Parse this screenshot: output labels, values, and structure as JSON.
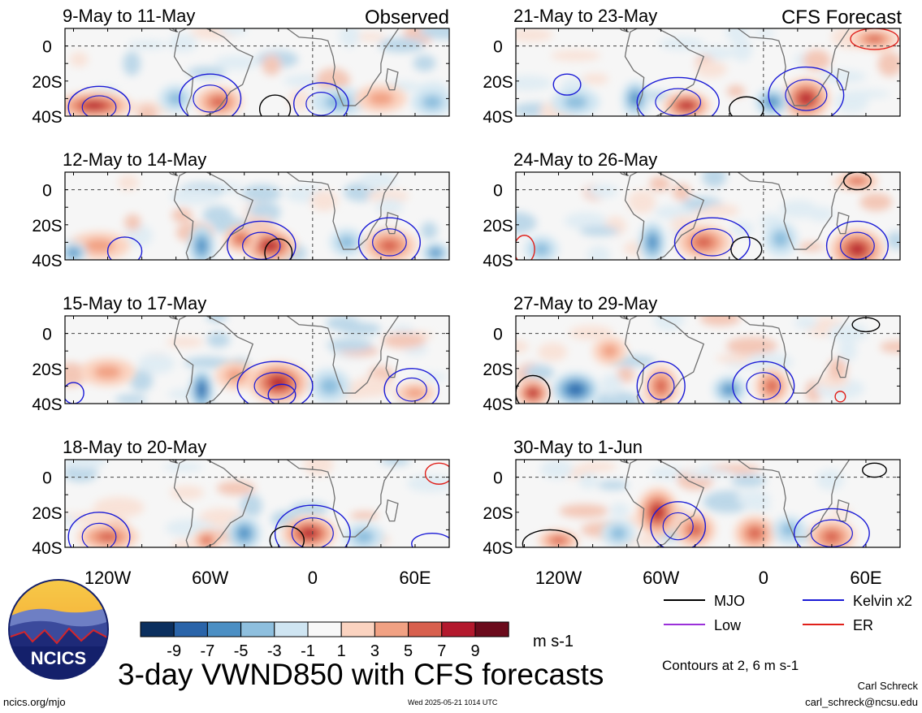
{
  "column_labels": {
    "left": "Observed",
    "right": "CFS Forecast"
  },
  "panels": [
    {
      "title": "9-May to 11-May",
      "column": "left"
    },
    {
      "title": "12-May to 14-May",
      "column": "left"
    },
    {
      "title": "15-May to 17-May",
      "column": "left"
    },
    {
      "title": "18-May to 20-May",
      "column": "left"
    },
    {
      "title": "21-May to 23-May",
      "column": "right"
    },
    {
      "title": "24-May to 26-May",
      "column": "right"
    },
    {
      "title": "27-May to 29-May",
      "column": "right"
    },
    {
      "title": "30-May to 1-Jun",
      "column": "right"
    }
  ],
  "chart_data": {
    "type": "heatmap",
    "title": "3-day VWND850 with CFS forecasts",
    "x_ticks": [
      "120W",
      "60W",
      "0",
      "60E"
    ],
    "x_tick_values": [
      -120,
      -60,
      0,
      60
    ],
    "y_ticks": [
      "0",
      "20S",
      "40S"
    ],
    "y_tick_values": [
      0,
      -20,
      -40
    ],
    "xlim": [
      -145,
      80
    ],
    "ylim": [
      -40,
      10
    ],
    "colorbar": {
      "unit": "m s-1",
      "tick_labels": [
        "-9",
        "-7",
        "-5",
        "-3",
        "-1",
        "1",
        "3",
        "5",
        "7",
        "9"
      ],
      "colors": [
        "#0b2f5e",
        "#2a64a9",
        "#4b8fc4",
        "#8ebfde",
        "#cfe5f2",
        "#f8f8f8",
        "#fbd3c0",
        "#f1a183",
        "#d8604e",
        "#b3192d",
        "#6b0b1c"
      ]
    },
    "legend": [
      {
        "label": "MJO",
        "color": "#000000"
      },
      {
        "label": "Kelvin x2",
        "color": "#1a1ad6"
      },
      {
        "label": "Low",
        "color": "#9b30d9"
      },
      {
        "label": "ER",
        "color": "#e0201a"
      }
    ],
    "contour_note": "Contours at 2, 6 m s-1",
    "features": [
      {
        "panel": 0,
        "kind": "anom",
        "lon": -128,
        "lat": -34,
        "rx": 22,
        "ry": 8,
        "v": 8
      },
      {
        "panel": 0,
        "kind": "anom",
        "lon": -55,
        "lat": -32,
        "rx": 14,
        "ry": 9,
        "v": 5
      },
      {
        "panel": 0,
        "kind": "anom",
        "lon": -80,
        "lat": -30,
        "rx": 10,
        "ry": 8,
        "v": -4
      },
      {
        "panel": 0,
        "kind": "anom",
        "lon": 15,
        "lat": -32,
        "rx": 16,
        "ry": 8,
        "v": -4
      },
      {
        "panel": 0,
        "kind": "anom",
        "lon": 40,
        "lat": -30,
        "rx": 15,
        "ry": 8,
        "v": 3
      },
      {
        "panel": 0,
        "kind": "anom",
        "lon": 70,
        "lat": -32,
        "rx": 12,
        "ry": 8,
        "v": -3
      },
      {
        "panel": 0,
        "kind": "contour",
        "lon": -125,
        "lat": -35,
        "rx": 18,
        "ry": 12,
        "color": "#1a1ad6"
      },
      {
        "panel": 0,
        "kind": "contour",
        "lon": -60,
        "lat": -30,
        "rx": 18,
        "ry": 14,
        "color": "#1a1ad6"
      },
      {
        "panel": 0,
        "kind": "contour",
        "lon": -22,
        "lat": -36,
        "rx": 9,
        "ry": 8,
        "color": "#000000"
      },
      {
        "panel": 0,
        "kind": "contour",
        "lon": 5,
        "lat": -33,
        "rx": 16,
        "ry": 12,
        "color": "#1a1ad6"
      },
      {
        "panel": 1,
        "kind": "anom",
        "lon": -25,
        "lat": -32,
        "rx": 16,
        "ry": 10,
        "v": 8
      },
      {
        "panel": 1,
        "kind": "anom",
        "lon": -42,
        "lat": -28,
        "rx": 10,
        "ry": 8,
        "v": 5
      },
      {
        "panel": 1,
        "kind": "anom",
        "lon": -65,
        "lat": -32,
        "rx": 8,
        "ry": 12,
        "v": -6
      },
      {
        "panel": 1,
        "kind": "anom",
        "lon": 45,
        "lat": -32,
        "rx": 16,
        "ry": 10,
        "v": 5
      },
      {
        "panel": 1,
        "kind": "anom",
        "lon": 20,
        "lat": -30,
        "rx": 10,
        "ry": 8,
        "v": -3
      },
      {
        "panel": 1,
        "kind": "anom",
        "lon": -125,
        "lat": -32,
        "rx": 18,
        "ry": 8,
        "v": 3
      },
      {
        "panel": 1,
        "kind": "anom",
        "lon": -140,
        "lat": -36,
        "rx": 8,
        "ry": 6,
        "v": -5
      },
      {
        "panel": 1,
        "kind": "anom",
        "lon": 72,
        "lat": -36,
        "rx": 8,
        "ry": 6,
        "v": -5
      },
      {
        "panel": 1,
        "kind": "contour",
        "lon": -30,
        "lat": -32,
        "rx": 20,
        "ry": 14,
        "color": "#1a1ad6"
      },
      {
        "panel": 1,
        "kind": "contour",
        "lon": -20,
        "lat": -36,
        "rx": 8,
        "ry": 8,
        "color": "#000000"
      },
      {
        "panel": 1,
        "kind": "contour",
        "lon": 45,
        "lat": -30,
        "rx": 18,
        "ry": 14,
        "color": "#1a1ad6"
      },
      {
        "panel": 1,
        "kind": "contour",
        "lon": -110,
        "lat": -35,
        "rx": 10,
        "ry": 8,
        "color": "#1a1ad6"
      },
      {
        "panel": 2,
        "kind": "anom",
        "lon": -20,
        "lat": -28,
        "rx": 18,
        "ry": 12,
        "v": 8
      },
      {
        "panel": 2,
        "kind": "anom",
        "lon": -65,
        "lat": -32,
        "rx": 7,
        "ry": 12,
        "v": -7
      },
      {
        "panel": 2,
        "kind": "anom",
        "lon": -45,
        "lat": -24,
        "rx": 12,
        "ry": 8,
        "v": 4
      },
      {
        "panel": 2,
        "kind": "anom",
        "lon": 10,
        "lat": -30,
        "rx": 12,
        "ry": 10,
        "v": -4
      },
      {
        "panel": 2,
        "kind": "anom",
        "lon": 60,
        "lat": -34,
        "rx": 12,
        "ry": 6,
        "v": 4
      },
      {
        "panel": 2,
        "kind": "anom",
        "lon": -120,
        "lat": -22,
        "rx": 16,
        "ry": 8,
        "v": 3
      },
      {
        "panel": 2,
        "kind": "contour",
        "lon": -22,
        "lat": -30,
        "rx": 22,
        "ry": 14,
        "color": "#1a1ad6"
      },
      {
        "panel": 2,
        "kind": "contour",
        "lon": -18,
        "lat": -35,
        "rx": 8,
        "ry": 6,
        "color": "#1a1ad6"
      },
      {
        "panel": 2,
        "kind": "contour",
        "lon": 58,
        "lat": -32,
        "rx": 16,
        "ry": 12,
        "color": "#1a1ad6"
      },
      {
        "panel": 2,
        "kind": "contour",
        "lon": -140,
        "lat": -34,
        "rx": 6,
        "ry": 6,
        "color": "#1a1ad6"
      },
      {
        "panel": 3,
        "kind": "anom",
        "lon": -2,
        "lat": -32,
        "rx": 16,
        "ry": 10,
        "v": 8
      },
      {
        "panel": 3,
        "kind": "anom",
        "lon": -40,
        "lat": -32,
        "rx": 10,
        "ry": 10,
        "v": -6
      },
      {
        "panel": 3,
        "kind": "anom",
        "lon": -120,
        "lat": -34,
        "rx": 18,
        "ry": 8,
        "v": 6
      },
      {
        "panel": 3,
        "kind": "anom",
        "lon": -62,
        "lat": -36,
        "rx": 8,
        "ry": 6,
        "v": 5
      },
      {
        "panel": 3,
        "kind": "anom",
        "lon": 30,
        "lat": -34,
        "rx": 12,
        "ry": 8,
        "v": -3
      },
      {
        "panel": 3,
        "kind": "contour",
        "lon": 0,
        "lat": -32,
        "rx": 22,
        "ry": 16,
        "color": "#1a1ad6"
      },
      {
        "panel": 3,
        "kind": "contour",
        "lon": -15,
        "lat": -36,
        "rx": 10,
        "ry": 8,
        "color": "#000000"
      },
      {
        "panel": 3,
        "kind": "contour",
        "lon": -125,
        "lat": -34,
        "rx": 18,
        "ry": 14,
        "color": "#1a1ad6"
      },
      {
        "panel": 3,
        "kind": "contour",
        "lon": 70,
        "lat": -38,
        "rx": 12,
        "ry": 6,
        "color": "#1a1ad6"
      },
      {
        "panel": 3,
        "kind": "contour",
        "lon": 74,
        "lat": 2,
        "rx": 8,
        "ry": 6,
        "color": "#e0201a"
      },
      {
        "panel": 4,
        "kind": "anom",
        "lon": -45,
        "lat": -34,
        "rx": 14,
        "ry": 8,
        "v": 7
      },
      {
        "panel": 4,
        "kind": "anom",
        "lon": 25,
        "lat": -30,
        "rx": 14,
        "ry": 12,
        "v": 7
      },
      {
        "panel": 4,
        "kind": "anom",
        "lon": 65,
        "lat": 4,
        "rx": 14,
        "ry": 6,
        "v": 6
      },
      {
        "panel": 4,
        "kind": "anom",
        "lon": -75,
        "lat": -30,
        "rx": 8,
        "ry": 10,
        "v": -5
      },
      {
        "panel": 4,
        "kind": "anom",
        "lon": 5,
        "lat": -32,
        "rx": 10,
        "ry": 8,
        "v": -5
      },
      {
        "panel": 4,
        "kind": "anom",
        "lon": -110,
        "lat": -32,
        "rx": 14,
        "ry": 8,
        "v": -3
      },
      {
        "panel": 4,
        "kind": "contour",
        "lon": -50,
        "lat": -32,
        "rx": 24,
        "ry": 14,
        "color": "#1a1ad6"
      },
      {
        "panel": 4,
        "kind": "contour",
        "lon": -10,
        "lat": -36,
        "rx": 10,
        "ry": 7,
        "color": "#000000"
      },
      {
        "panel": 4,
        "kind": "contour",
        "lon": 25,
        "lat": -28,
        "rx": 22,
        "ry": 16,
        "color": "#1a1ad6"
      },
      {
        "panel": 4,
        "kind": "contour",
        "lon": -115,
        "lat": -22,
        "rx": 8,
        "ry": 6,
        "color": "#1a1ad6"
      },
      {
        "panel": 4,
        "kind": "contour",
        "lon": 65,
        "lat": 4,
        "rx": 14,
        "ry": 6,
        "color": "#e0201a"
      },
      {
        "panel": 5,
        "kind": "anom",
        "lon": 55,
        "lat": -34,
        "rx": 16,
        "ry": 12,
        "v": 8
      },
      {
        "panel": 5,
        "kind": "anom",
        "lon": -35,
        "lat": -30,
        "rx": 16,
        "ry": 10,
        "v": 6
      },
      {
        "panel": 5,
        "kind": "anom",
        "lon": 55,
        "lat": 5,
        "rx": 12,
        "ry": 5,
        "v": 6
      },
      {
        "panel": 5,
        "kind": "anom",
        "lon": -65,
        "lat": -30,
        "rx": 8,
        "ry": 12,
        "v": -5
      },
      {
        "panel": 5,
        "kind": "anom",
        "lon": 10,
        "lat": -28,
        "rx": 10,
        "ry": 10,
        "v": -4
      },
      {
        "panel": 5,
        "kind": "anom",
        "lon": -130,
        "lat": -34,
        "rx": 10,
        "ry": 8,
        "v": -4
      },
      {
        "panel": 5,
        "kind": "contour",
        "lon": 55,
        "lat": -32,
        "rx": 18,
        "ry": 14,
        "color": "#1a1ad6"
      },
      {
        "panel": 5,
        "kind": "contour",
        "lon": -30,
        "lat": -30,
        "rx": 22,
        "ry": 14,
        "color": "#1a1ad6"
      },
      {
        "panel": 5,
        "kind": "contour",
        "lon": -10,
        "lat": -34,
        "rx": 9,
        "ry": 7,
        "color": "#000000"
      },
      {
        "panel": 5,
        "kind": "contour",
        "lon": 55,
        "lat": 5,
        "rx": 8,
        "ry": 5,
        "color": "#000000"
      },
      {
        "panel": 5,
        "kind": "contour",
        "lon": -140,
        "lat": -34,
        "rx": 6,
        "ry": 8,
        "color": "#e0201a"
      },
      {
        "panel": 6,
        "kind": "anom",
        "lon": -110,
        "lat": -32,
        "rx": 14,
        "ry": 10,
        "v": -8
      },
      {
        "panel": 6,
        "kind": "anom",
        "lon": -135,
        "lat": -34,
        "rx": 10,
        "ry": 8,
        "v": 8
      },
      {
        "panel": 6,
        "kind": "anom",
        "lon": -60,
        "lat": -30,
        "rx": 10,
        "ry": 12,
        "v": 6
      },
      {
        "panel": 6,
        "kind": "anom",
        "lon": -90,
        "lat": -10,
        "rx": 10,
        "ry": 8,
        "v": 4
      },
      {
        "panel": 6,
        "kind": "anom",
        "lon": -20,
        "lat": -32,
        "rx": 10,
        "ry": 8,
        "v": -5
      },
      {
        "panel": 6,
        "kind": "anom",
        "lon": 5,
        "lat": -30,
        "rx": 10,
        "ry": 10,
        "v": 6
      },
      {
        "panel": 6,
        "kind": "contour",
        "lon": -135,
        "lat": -34,
        "rx": 10,
        "ry": 10,
        "color": "#000000"
      },
      {
        "panel": 6,
        "kind": "contour",
        "lon": -60,
        "lat": -30,
        "rx": 14,
        "ry": 14,
        "color": "#1a1ad6"
      },
      {
        "panel": 6,
        "kind": "contour",
        "lon": 0,
        "lat": -30,
        "rx": 18,
        "ry": 14,
        "color": "#1a1ad6"
      },
      {
        "panel": 6,
        "kind": "contour",
        "lon": 60,
        "lat": 5,
        "rx": 8,
        "ry": 4,
        "color": "#000000"
      },
      {
        "panel": 6,
        "kind": "contour",
        "lon": 45,
        "lat": -36,
        "rx": 3,
        "ry": 3,
        "color": "#e0201a"
      },
      {
        "panel": 7,
        "kind": "anom",
        "lon": -62,
        "lat": -20,
        "rx": 12,
        "ry": 14,
        "v": 8
      },
      {
        "panel": 7,
        "kind": "anom",
        "lon": -40,
        "lat": -30,
        "rx": 12,
        "ry": 10,
        "v": 6
      },
      {
        "panel": 7,
        "kind": "anom",
        "lon": -5,
        "lat": -32,
        "rx": 12,
        "ry": 10,
        "v": 6
      },
      {
        "panel": 7,
        "kind": "anom",
        "lon": 40,
        "lat": -34,
        "rx": 14,
        "ry": 10,
        "v": 6
      },
      {
        "panel": 7,
        "kind": "anom",
        "lon": -120,
        "lat": -36,
        "rx": 12,
        "ry": 6,
        "v": 6
      },
      {
        "panel": 7,
        "kind": "anom",
        "lon": -85,
        "lat": -32,
        "rx": 10,
        "ry": 8,
        "v": -4
      },
      {
        "panel": 7,
        "kind": "anom",
        "lon": 15,
        "lat": -30,
        "rx": 10,
        "ry": 8,
        "v": -4
      },
      {
        "panel": 7,
        "kind": "contour",
        "lon": -125,
        "lat": -38,
        "rx": 16,
        "ry": 8,
        "color": "#000000"
      },
      {
        "panel": 7,
        "kind": "contour",
        "lon": -50,
        "lat": -28,
        "rx": 16,
        "ry": 14,
        "color": "#1a1ad6"
      },
      {
        "panel": 7,
        "kind": "contour",
        "lon": 40,
        "lat": -32,
        "rx": 22,
        "ry": 14,
        "color": "#1a1ad6"
      },
      {
        "panel": 7,
        "kind": "contour",
        "lon": 65,
        "lat": 4,
        "rx": 7,
        "ry": 4,
        "color": "#000000"
      }
    ]
  },
  "colorbar_unit": "m s-1",
  "contour_note": "Contours at 2, 6 m s-1",
  "legend_items": [
    {
      "label": "MJO",
      "color": "#000000"
    },
    {
      "label": "Kelvin x2",
      "color": "#1a1ad6"
    },
    {
      "label": "Low",
      "color": "#9b30d9"
    },
    {
      "label": "ER",
      "color": "#e0201a"
    }
  ],
  "footer": {
    "url": "ncics.org/mjo",
    "timestamp": "Wed 2025-05-21 1014 UTC",
    "author": "Carl Schreck",
    "email": "carl_schreck@ncsu.edu"
  },
  "logo": {
    "text": "NCICS"
  },
  "main_title": "3-day VWND850 with CFS forecasts"
}
